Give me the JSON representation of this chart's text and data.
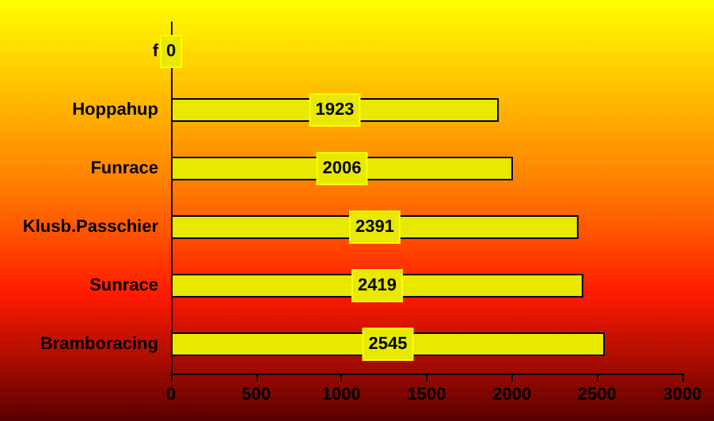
{
  "chart_data": {
    "type": "bar",
    "orientation": "horizontal",
    "categories": [
      "f",
      "Hoppahup",
      "Funrace",
      "Klusb.Passchier",
      "Sunrace",
      "Bramboracing"
    ],
    "values": [
      0,
      1923,
      2006,
      2391,
      2419,
      2545
    ],
    "color": "#e8e800",
    "xlim": [
      0,
      3000
    ],
    "xticks": [
      0,
      500,
      1000,
      1500,
      2000,
      2500,
      3000
    ],
    "data_labels": true,
    "grid": false
  }
}
